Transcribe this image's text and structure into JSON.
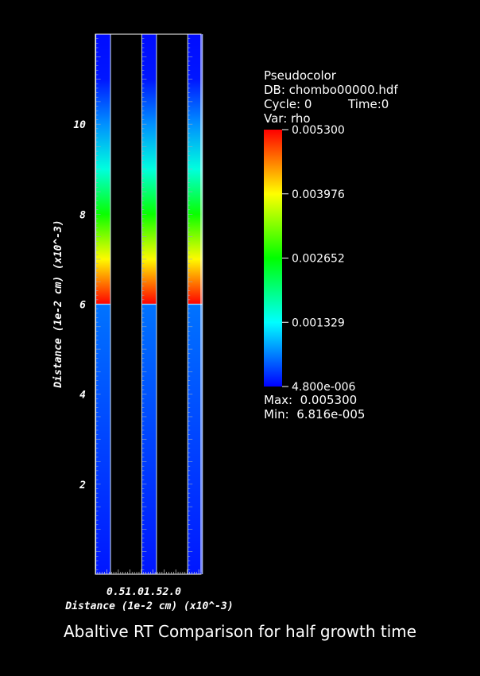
{
  "caption": "Abaltive RT Comparison for half growth time",
  "legend": {
    "plot_type": "Pseudocolor",
    "db": "DB: chombo00000.hdf",
    "cycle": "Cycle: 0",
    "time": "Time:0",
    "var": "Var: rho",
    "max_text": "Max:  0.005300",
    "min_text": "Min:  6.816e-005",
    "colorbar_ticks": [
      "0.005300",
      "0.003976",
      "0.002652",
      "0.001329",
      "4.800e-006"
    ],
    "colormap": [
      "#0000ff",
      "#00ffff",
      "#00ff00",
      "#ffff00",
      "#ff0000"
    ]
  },
  "chart_data": {
    "type": "heatmap",
    "variable": "rho",
    "xlabel": "Distance (1e-2 cm) (x10^-3)",
    "ylabel": "Distance (1e-2 cm) (x10^-3)",
    "xlim": [
      0,
      2.3
    ],
    "ylim": [
      0,
      12
    ],
    "x_tick_text": "0.51.01.52.0",
    "y_ticks": [
      2,
      4,
      6,
      8,
      10
    ],
    "y_tick_labels": [
      "2",
      "4",
      "6",
      "8",
      "10"
    ],
    "columns": [
      {
        "x_center": 0.17,
        "width": 0.32
      },
      {
        "x_center": 1.17,
        "width": 0.32
      },
      {
        "x_center": 2.17,
        "width": 0.32
      }
    ],
    "interface_y": 6.0,
    "colorbar_range": [
      4.8e-06,
      0.0053
    ],
    "profile_upper": [
      {
        "y": 6.0,
        "rho": 0.0053
      },
      {
        "y": 7.0,
        "rho": 0.004
      },
      {
        "y": 8.0,
        "rho": 0.0027
      },
      {
        "y": 9.0,
        "rho": 0.0015
      },
      {
        "y": 10.0,
        "rho": 0.00075
      },
      {
        "y": 11.0,
        "rho": 0.00012
      },
      {
        "y": 12.0,
        "rho": 6.8e-05
      }
    ],
    "profile_lower": [
      {
        "y": 0.0,
        "rho": 0.00012
      },
      {
        "y": 5.99,
        "rho": 0.0006
      }
    ]
  }
}
